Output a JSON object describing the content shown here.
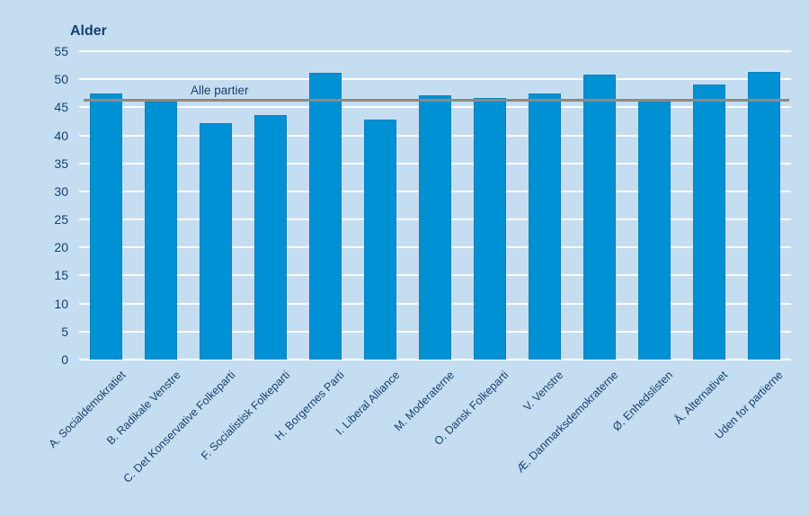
{
  "chart_data": {
    "type": "bar",
    "title": "Alder",
    "categories": [
      "A. Socialdemokratiet",
      "B. Radikale Venstre",
      "C. Det Konservative Folkeparti",
      "F. Socialistisk Folkeparti",
      "H. Borgernes Parti",
      "I. Liberal Alliance",
      "M. Moderaterne",
      "O. Dansk Folkeparti",
      "V. Venstre",
      "Æ. Danmarksdemokraterne",
      "Ø. Enhedslisten",
      "Å. Alternativet",
      "Uden for partierne"
    ],
    "values": [
      47.5,
      46.0,
      42.2,
      43.6,
      51.1,
      42.8,
      47.2,
      46.6,
      47.4,
      50.8,
      46.2,
      49.0,
      51.3
    ],
    "ylim": [
      0,
      55
    ],
    "ytick_step": 5,
    "yticks": [
      "0",
      "5",
      "10",
      "15",
      "20",
      "25",
      "30",
      "35",
      "40",
      "45",
      "50",
      "55"
    ],
    "xlabel": "",
    "ylabel": "Alder",
    "grid": true,
    "legend_position": "none",
    "reference_line": {
      "label": "Alle partier",
      "value": 46.3
    },
    "colors": {
      "background": "#c5ddf1",
      "bar": "#0090d4",
      "bar_edge": "#0c82bd",
      "grid": "#ffffff",
      "text": "#17406e",
      "reference_line": "#8b8b85"
    }
  }
}
